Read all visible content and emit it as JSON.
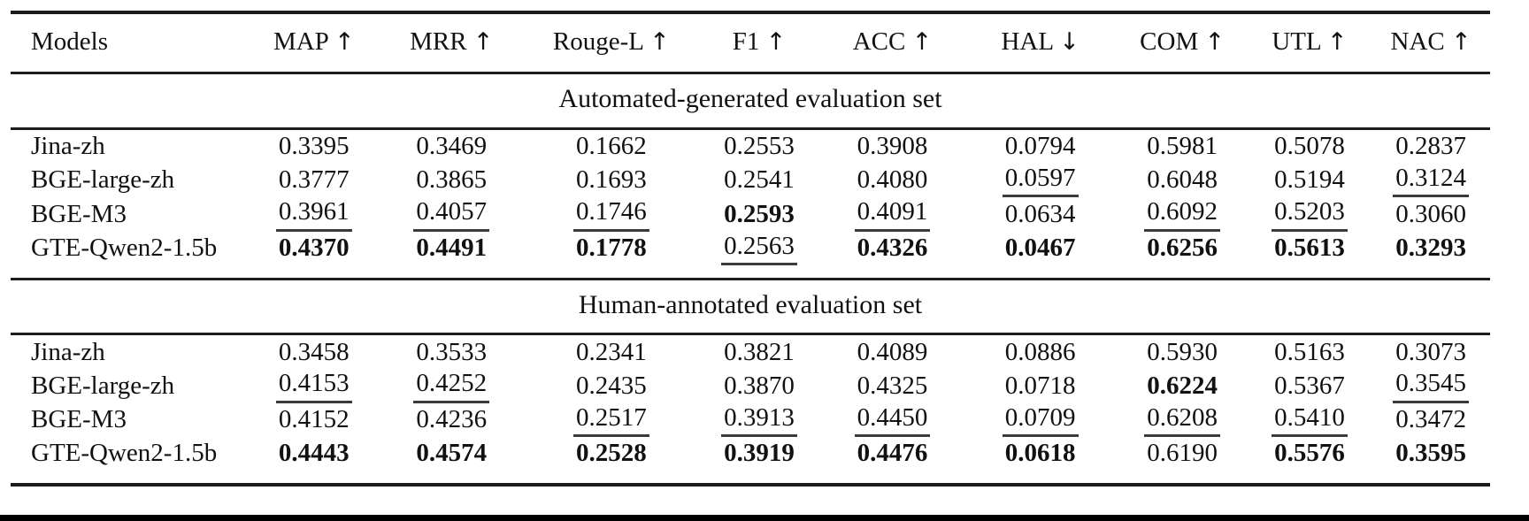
{
  "colors": {
    "rule": "#1c1c1c",
    "text": "#111111",
    "page_bottom_bar": "#000000"
  },
  "table": {
    "columns": [
      {
        "label": "Models",
        "arrow": ""
      },
      {
        "label": "MAP",
        "arrow": "↑"
      },
      {
        "label": "MRR",
        "arrow": "↑"
      },
      {
        "label": "Rouge-L",
        "arrow": "↑"
      },
      {
        "label": "F1",
        "arrow": "↑"
      },
      {
        "label": "ACC",
        "arrow": "↑"
      },
      {
        "label": "HAL",
        "arrow": "↓"
      },
      {
        "label": "COM",
        "arrow": "↑"
      },
      {
        "label": "UTL",
        "arrow": "↑"
      },
      {
        "label": "NAC",
        "arrow": "↑"
      }
    ],
    "sections": [
      {
        "title": "Automated-generated evaluation set",
        "rows": [
          {
            "model": "Jina-zh",
            "values": [
              "0.3395",
              "0.3469",
              "0.1662",
              "0.2553",
              "0.3908",
              "0.0794",
              "0.5981",
              "0.5078",
              "0.2837"
            ],
            "styles": [
              "plain",
              "plain",
              "plain",
              "plain",
              "plain",
              "plain",
              "plain",
              "plain",
              "plain"
            ]
          },
          {
            "model": "BGE-large-zh",
            "values": [
              "0.3777",
              "0.3865",
              "0.1693",
              "0.2541",
              "0.4080",
              "0.0597",
              "0.6048",
              "0.5194",
              "0.3124"
            ],
            "styles": [
              "plain",
              "plain",
              "plain",
              "plain",
              "plain",
              "underline",
              "plain",
              "plain",
              "underline"
            ]
          },
          {
            "model": "BGE-M3",
            "values": [
              "0.3961",
              "0.4057",
              "0.1746",
              "0.2593",
              "0.4091",
              "0.0634",
              "0.6092",
              "0.5203",
              "0.3060"
            ],
            "styles": [
              "underline",
              "underline",
              "underline",
              "bold",
              "underline",
              "plain",
              "underline",
              "underline",
              "plain"
            ]
          },
          {
            "model": "GTE-Qwen2-1.5b",
            "values": [
              "0.4370",
              "0.4491",
              "0.1778",
              "0.2563",
              "0.4326",
              "0.0467",
              "0.6256",
              "0.5613",
              "0.3293"
            ],
            "styles": [
              "bold",
              "bold",
              "bold",
              "underline",
              "bold",
              "bold",
              "bold",
              "bold",
              "bold"
            ]
          }
        ]
      },
      {
        "title": "Human-annotated evaluation set",
        "rows": [
          {
            "model": "Jina-zh",
            "values": [
              "0.3458",
              "0.3533",
              "0.2341",
              "0.3821",
              "0.4089",
              "0.0886",
              "0.5930",
              "0.5163",
              "0.3073"
            ],
            "styles": [
              "plain",
              "plain",
              "plain",
              "plain",
              "plain",
              "plain",
              "plain",
              "plain",
              "plain"
            ]
          },
          {
            "model": "BGE-large-zh",
            "values": [
              "0.4153",
              "0.4252",
              "0.2435",
              "0.3870",
              "0.4325",
              "0.0718",
              "0.6224",
              "0.5367",
              "0.3545"
            ],
            "styles": [
              "underline",
              "underline",
              "plain",
              "plain",
              "plain",
              "plain",
              "bold",
              "plain",
              "underline"
            ]
          },
          {
            "model": "BGE-M3",
            "values": [
              "0.4152",
              "0.4236",
              "0.2517",
              "0.3913",
              "0.4450",
              "0.0709",
              "0.6208",
              "0.5410",
              "0.3472"
            ],
            "styles": [
              "plain",
              "plain",
              "underline",
              "underline",
              "underline",
              "underline",
              "underline",
              "underline",
              "plain"
            ]
          },
          {
            "model": "GTE-Qwen2-1.5b",
            "values": [
              "0.4443",
              "0.4574",
              "0.2528",
              "0.3919",
              "0.4476",
              "0.0618",
              "0.6190",
              "0.5576",
              "0.3595"
            ],
            "styles": [
              "bold",
              "bold",
              "bold",
              "bold",
              "bold",
              "bold",
              "plain",
              "bold",
              "bold"
            ]
          }
        ]
      }
    ]
  }
}
